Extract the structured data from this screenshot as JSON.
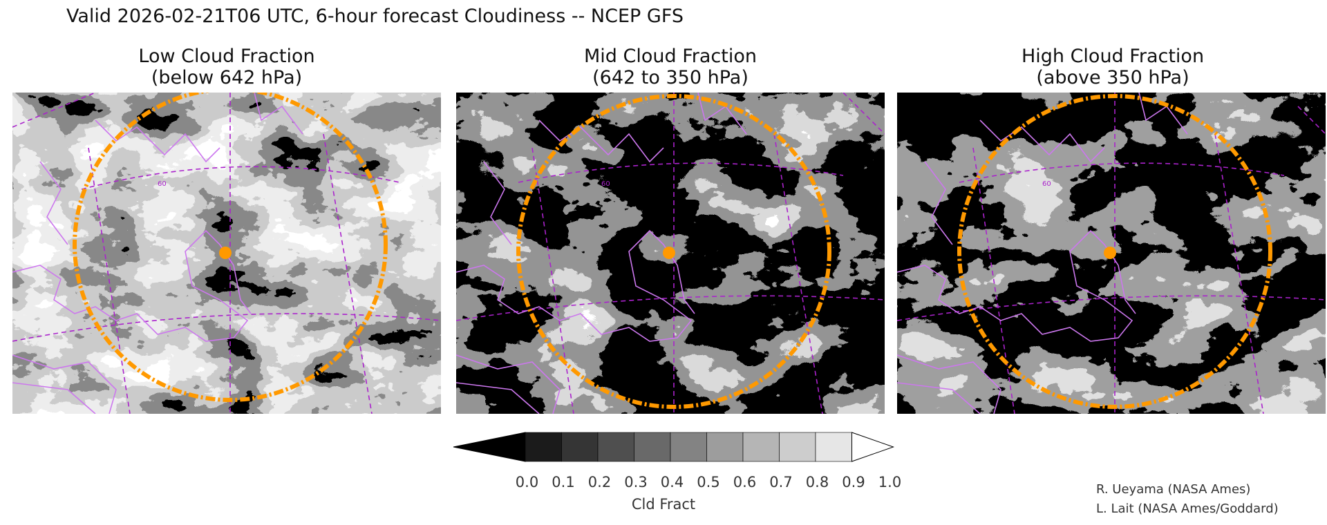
{
  "title": "Valid 2026-02-21T06 UTC, 6-hour forecast Cloudiness -- NCEP GFS",
  "panels": [
    {
      "line1": "Low Cloud Fraction",
      "line2": "(below 642 hPa)",
      "grid_label": "60"
    },
    {
      "line1": "Mid Cloud Fraction",
      "line2": "(642 to 350 hPa)",
      "grid_label": "60"
    },
    {
      "line1": "High Cloud Fraction",
      "line2": "(above 350 hPa)",
      "grid_label": "60"
    }
  ],
  "colorbar": {
    "ticks": [
      "0.0",
      "0.1",
      "0.2",
      "0.3",
      "0.4",
      "0.5",
      "0.6",
      "0.7",
      "0.8",
      "0.9",
      "1.0"
    ],
    "label": "Cld Fract",
    "colors": [
      "#000000",
      "#1b1b1b",
      "#353535",
      "#4f4f4f",
      "#696969",
      "#838383",
      "#9d9d9d",
      "#b5b5b5",
      "#cdcdcd",
      "#e6e6e6",
      "#ffffff"
    ]
  },
  "credits": [
    "R. Ueyama (NASA Ames)",
    "L. Lait (NASA Ames/Goddard)"
  ],
  "colors": {
    "coastline": "#cc77ee",
    "gridline": "#aa22cc",
    "range_ring": "#ff9900",
    "marker": "#ff9900"
  }
}
